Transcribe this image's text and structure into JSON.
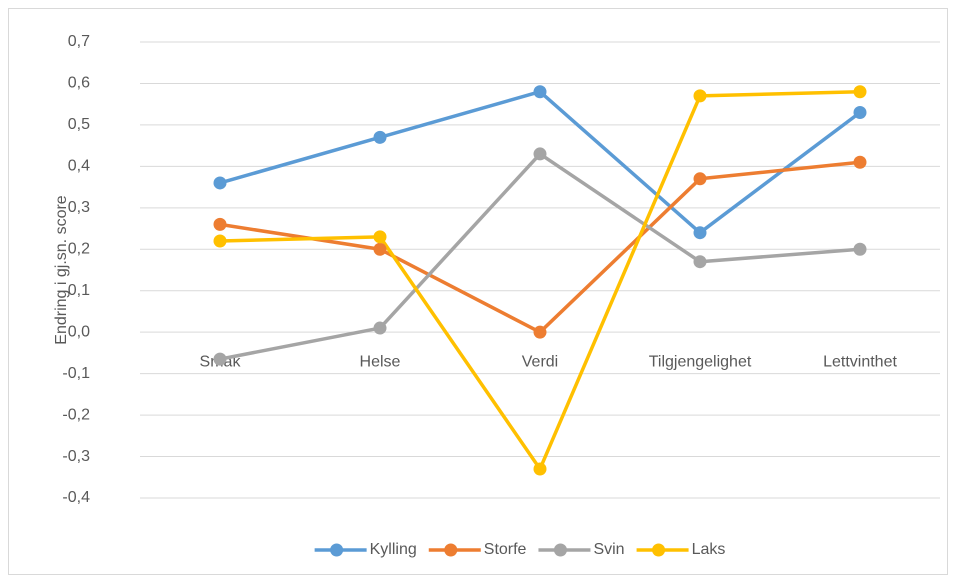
{
  "chart_data": {
    "type": "line",
    "y_label": "Endring i gj.sn. score",
    "categories": [
      "Smak",
      "Helse",
      "Verdi",
      "Tilgjengelighet",
      "Lettvinthet"
    ],
    "series": [
      {
        "name": "Kylling",
        "color": "#5b9bd5",
        "values": [
          0.36,
          0.47,
          0.58,
          0.24,
          0.53
        ]
      },
      {
        "name": "Storfe",
        "color": "#ed7d31",
        "values": [
          0.26,
          0.2,
          0.0,
          0.37,
          0.41
        ]
      },
      {
        "name": "Svin",
        "color": "#a5a5a5",
        "values": [
          -0.065,
          0.01,
          0.43,
          0.17,
          0.2
        ]
      },
      {
        "name": "Laks",
        "color": "#ffc000",
        "values": [
          0.22,
          0.23,
          -0.33,
          0.57,
          0.58
        ]
      }
    ],
    "ylim": [
      -0.4,
      0.7
    ],
    "yticks": [
      {
        "value": -0.4,
        "label": "-0,4"
      },
      {
        "value": -0.3,
        "label": "-0,3"
      },
      {
        "value": -0.2,
        "label": "-0,2"
      },
      {
        "value": -0.1,
        "label": "-0,1"
      },
      {
        "value": 0.0,
        "label": "0,0"
      },
      {
        "value": 0.1,
        "label": "0,1"
      },
      {
        "value": 0.2,
        "label": "0,2"
      },
      {
        "value": 0.3,
        "label": "0,3"
      },
      {
        "value": 0.4,
        "label": "0,4"
      },
      {
        "value": 0.5,
        "label": "0,5"
      },
      {
        "value": 0.6,
        "label": "0,6"
      },
      {
        "value": 0.7,
        "label": "0,7"
      }
    ],
    "grid": true,
    "legend": "bottom"
  }
}
